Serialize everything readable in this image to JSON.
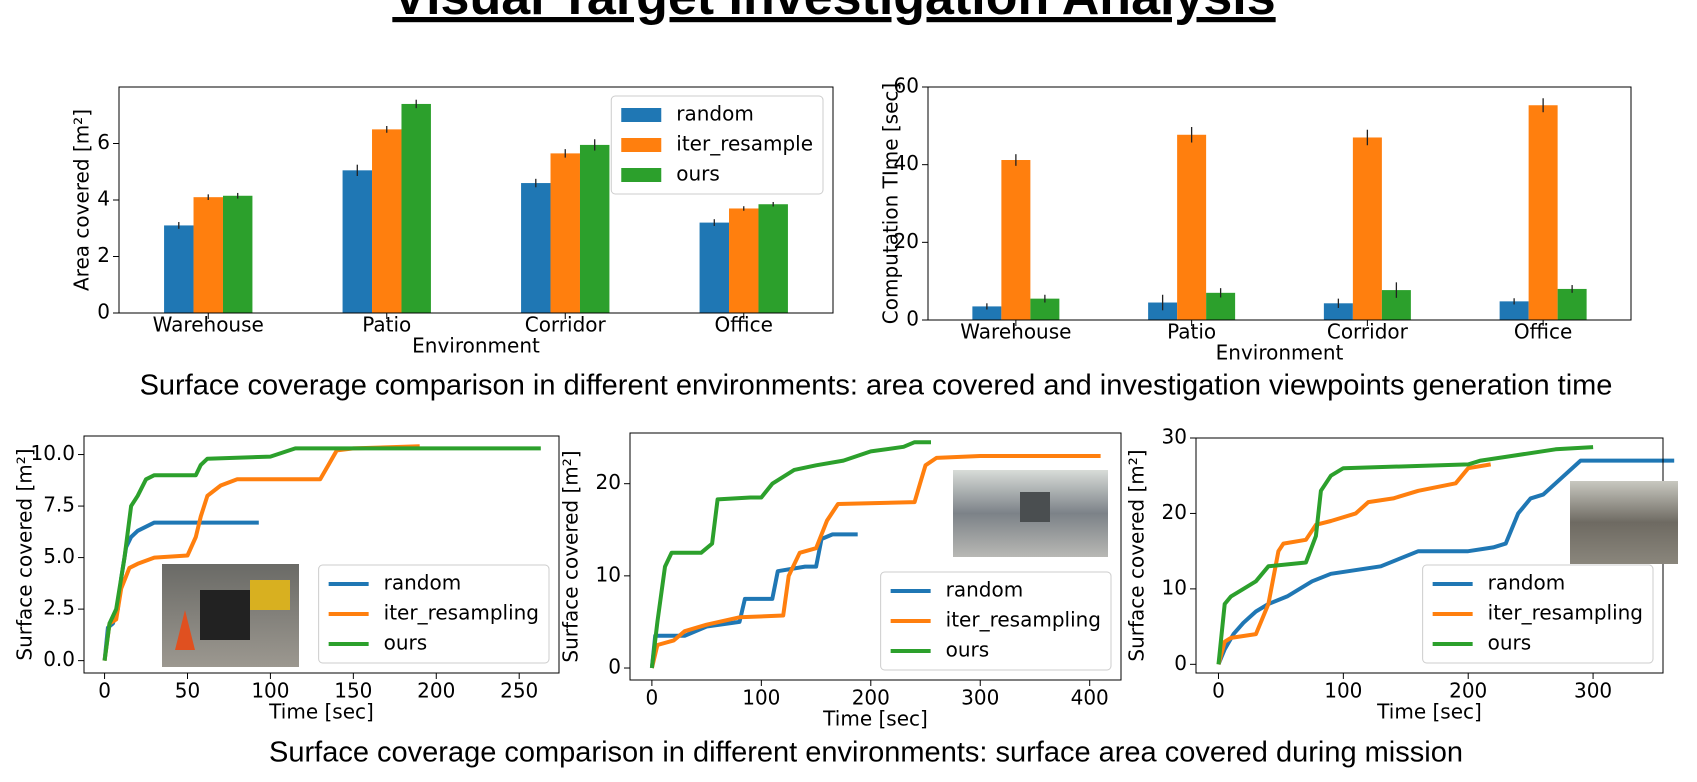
{
  "title": "Visual Target Investigation Analysis",
  "captions": [
    "Surface coverage comparison in different environments: area covered and investigation viewpoints generation time",
    "Surface coverage comparison in different environments: surface area covered during mission"
  ],
  "chart_data": [
    {
      "type": "bar",
      "x_label": "Environment",
      "y_label": "Area covered [m²]",
      "categories": [
        "Warehouse",
        "Patio",
        "Corridor",
        "Office"
      ],
      "series": [
        {
          "name": "random",
          "color": "#1f77b4",
          "values": [
            3.1,
            5.05,
            4.6,
            3.2
          ],
          "errors": [
            0.12,
            0.2,
            0.15,
            0.12
          ]
        },
        {
          "name": "iter_resample",
          "color": "#ff7f0e",
          "values": [
            4.1,
            6.5,
            5.65,
            3.7
          ],
          "errors": [
            0.1,
            0.12,
            0.15,
            0.08
          ]
        },
        {
          "name": "ours",
          "color": "#2ca02c",
          "values": [
            4.15,
            7.4,
            5.95,
            3.85
          ],
          "errors": [
            0.1,
            0.15,
            0.2,
            0.08
          ]
        }
      ],
      "ylim": [
        0,
        8
      ],
      "yticks": [
        0,
        2,
        4,
        6
      ],
      "legend": "upper right"
    },
    {
      "type": "bar",
      "x_label": "Environment",
      "y_label": "Computation TIme [sec]",
      "categories": [
        "Warehouse",
        "Patio",
        "Corridor",
        "Office"
      ],
      "series": [
        {
          "name": "random",
          "color": "#1f77b4",
          "values": [
            3.5,
            4.5,
            4.3,
            4.8
          ],
          "errors": [
            0.8,
            2.0,
            1.2,
            0.8
          ]
        },
        {
          "name": "iter_resample",
          "color": "#ff7f0e",
          "values": [
            41.2,
            47.7,
            47.0,
            55.3
          ],
          "errors": [
            1.5,
            2.0,
            2.0,
            1.8
          ]
        },
        {
          "name": "ours",
          "color": "#2ca02c",
          "values": [
            5.5,
            7.0,
            7.7,
            8.0
          ],
          "errors": [
            1.0,
            1.2,
            2.0,
            1.0
          ]
        }
      ],
      "ylim": [
        0,
        60
      ],
      "yticks": [
        0,
        20,
        40,
        60
      ]
    },
    {
      "type": "line",
      "x_label": "Time [sec]",
      "y_label": "Surface covered [m²]",
      "series": [
        {
          "name": "random",
          "color": "#1f77b4",
          "x": [
            0,
            2,
            5,
            8,
            10,
            13,
            16,
            20,
            25,
            30,
            93
          ],
          "values": [
            0,
            1.6,
            1.8,
            2.5,
            4,
            5.5,
            6,
            6.3,
            6.5,
            6.7,
            6.7
          ]
        },
        {
          "name": "iter_resampling",
          "color": "#ff7f0e",
          "x": [
            0,
            3,
            7,
            10,
            15,
            20,
            30,
            50,
            55,
            58,
            62,
            70,
            80,
            130,
            135,
            140,
            150,
            190
          ],
          "values": [
            0,
            1.8,
            2,
            3.5,
            4.5,
            4.7,
            5,
            5.1,
            6,
            7,
            8,
            8.5,
            8.8,
            8.8,
            9.5,
            10.2,
            10.3,
            10.4
          ]
        },
        {
          "name": "ours",
          "color": "#2ca02c",
          "x": [
            0,
            3,
            7,
            12,
            16,
            20,
            25,
            30,
            55,
            58,
            62,
            100,
            115,
            263
          ],
          "values": [
            0,
            1.8,
            2.5,
            5,
            7.5,
            8,
            8.8,
            9,
            9,
            9.5,
            9.8,
            9.9,
            10.3,
            10.3
          ]
        }
      ],
      "xlim": [
        -12.4,
        274
      ],
      "xticks": [
        0,
        50,
        100,
        150,
        200,
        250
      ],
      "ylim": [
        -0.6,
        10.9
      ],
      "yticks": [
        {
          "value": 0,
          "label": "0.0"
        },
        2.5,
        {
          "value": 5,
          "label": "5.0"
        },
        7.5,
        {
          "value": 10,
          "label": "10.0"
        }
      ],
      "legend": "lower right"
    },
    {
      "type": "line",
      "x_label": "Time [sec]",
      "y_label": "Surface covered [m²]",
      "series": [
        {
          "name": "random",
          "color": "#1f77b4",
          "x": [
            0,
            3,
            30,
            50,
            80,
            85,
            110,
            115,
            140,
            150,
            155,
            165,
            188
          ],
          "values": [
            0,
            3.5,
            3.5,
            4.5,
            5,
            7.5,
            7.5,
            10.5,
            11,
            11,
            14,
            14.5,
            14.5
          ]
        },
        {
          "name": "iter_resampling",
          "color": "#ff7f0e",
          "x": [
            0,
            5,
            20,
            30,
            50,
            80,
            120,
            125,
            135,
            150,
            160,
            170,
            240,
            245,
            250,
            260,
            300,
            410
          ],
          "values": [
            0,
            2.5,
            3,
            4,
            4.7,
            5.5,
            5.7,
            10,
            12.5,
            13,
            16,
            17.8,
            18,
            20,
            22,
            22.8,
            23,
            23
          ]
        },
        {
          "name": "ours",
          "color": "#2ca02c",
          "x": [
            0,
            5,
            12,
            18,
            45,
            55,
            60,
            90,
            100,
            110,
            130,
            150,
            175,
            200,
            230,
            240,
            255
          ],
          "values": [
            0,
            5,
            11,
            12.5,
            12.5,
            13.5,
            18.3,
            18.5,
            18.5,
            20,
            21.5,
            22,
            22.5,
            23.5,
            24,
            24.5,
            24.5
          ]
        }
      ],
      "xlim": [
        -20,
        428.6
      ],
      "xticks": [
        0,
        100,
        200,
        300,
        400
      ],
      "ylim": [
        -1.3,
        25.5
      ],
      "yticks": [
        0,
        10,
        20
      ],
      "legend": "lower right"
    },
    {
      "type": "line",
      "x_label": "Time [sec]",
      "y_label": "Surface covered [m²]",
      "series": [
        {
          "name": "random",
          "color": "#1f77b4",
          "x": [
            0,
            5,
            12,
            20,
            30,
            40,
            55,
            75,
            90,
            130,
            160,
            200,
            220,
            230,
            240,
            250,
            260,
            270,
            290,
            365
          ],
          "values": [
            0,
            2,
            4,
            5.5,
            7,
            8,
            9,
            11,
            12,
            13,
            15,
            15,
            15.5,
            16,
            20,
            22,
            22.5,
            24,
            27,
            27
          ]
        },
        {
          "name": "iter_resampling",
          "color": "#ff7f0e",
          "x": [
            0,
            5,
            10,
            30,
            40,
            48,
            52,
            70,
            78,
            90,
            110,
            120,
            140,
            160,
            190,
            200,
            218
          ],
          "values": [
            0,
            3,
            3.5,
            4,
            8,
            15,
            16,
            16.5,
            18.5,
            19,
            20,
            21.5,
            22,
            23,
            24,
            26,
            26.5
          ]
        },
        {
          "name": "ours",
          "color": "#2ca02c",
          "x": [
            0,
            5,
            10,
            20,
            30,
            40,
            70,
            78,
            82,
            90,
            100,
            200,
            210,
            230,
            270,
            300
          ],
          "values": [
            0,
            8,
            9,
            10,
            11,
            13,
            13.5,
            17,
            23,
            25,
            26,
            26.5,
            27,
            27.5,
            28.5,
            28.8
          ]
        }
      ],
      "xlim": [
        -18,
        356
      ],
      "xticks": [
        0,
        100,
        200,
        300
      ],
      "ylim": [
        -1.15,
        30
      ],
      "yticks": [
        0,
        10,
        20,
        30
      ],
      "legend": "lower right"
    }
  ]
}
